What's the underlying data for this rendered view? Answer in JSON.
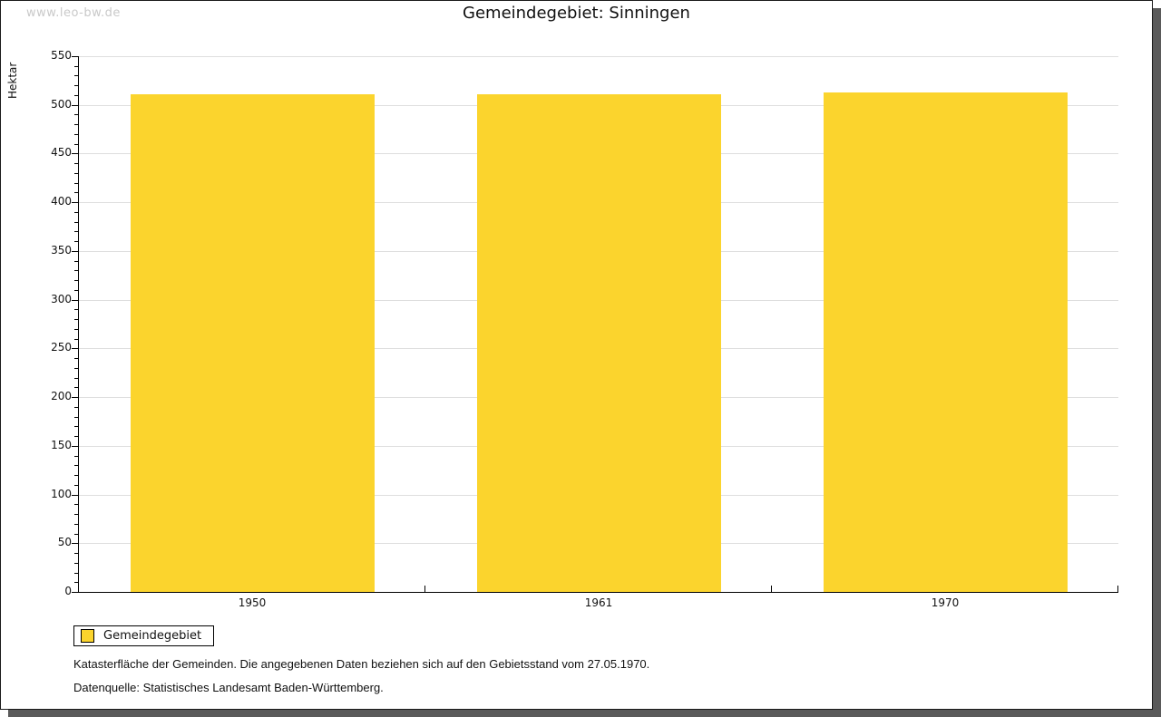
{
  "watermark": "www.leo-bw.de",
  "title": "Gemeindegebiet: Sinningen",
  "chart_data": {
    "type": "bar",
    "title": "Gemeindegebiet: Sinningen",
    "categories": [
      "1950",
      "1961",
      "1970"
    ],
    "series": [
      {
        "name": "Gemeindegebiet",
        "values": [
          511,
          511,
          513
        ]
      }
    ],
    "xlabel": "",
    "ylabel": "Hektar",
    "ylim": [
      0,
      550
    ],
    "yticks": [
      0,
      50,
      100,
      150,
      200,
      250,
      300,
      350,
      400,
      450,
      500,
      550
    ],
    "ytick_step": 50,
    "minor_tick_step": 10,
    "grid": true,
    "legend_position": "bottom-left",
    "bar_color": "#fbd42d"
  },
  "legend": {
    "label": "Gemeindegebiet",
    "swatch_color": "#fbd42d"
  },
  "footnotes": {
    "line1": "Katasterfläche der Gemeinden. Die angegebenen Daten beziehen sich auf den Gebietsstand vom 27.05.1970.",
    "line2": "Datenquelle: Statistisches Landesamt Baden-Württemberg."
  },
  "colors": {
    "bar": "#fbd42d",
    "gridline": "#dedede",
    "watermark": "#c9c9c9",
    "frame_border": "#1a1a1a",
    "frame_shadow": "#5a5a5a",
    "text": "#111111"
  }
}
